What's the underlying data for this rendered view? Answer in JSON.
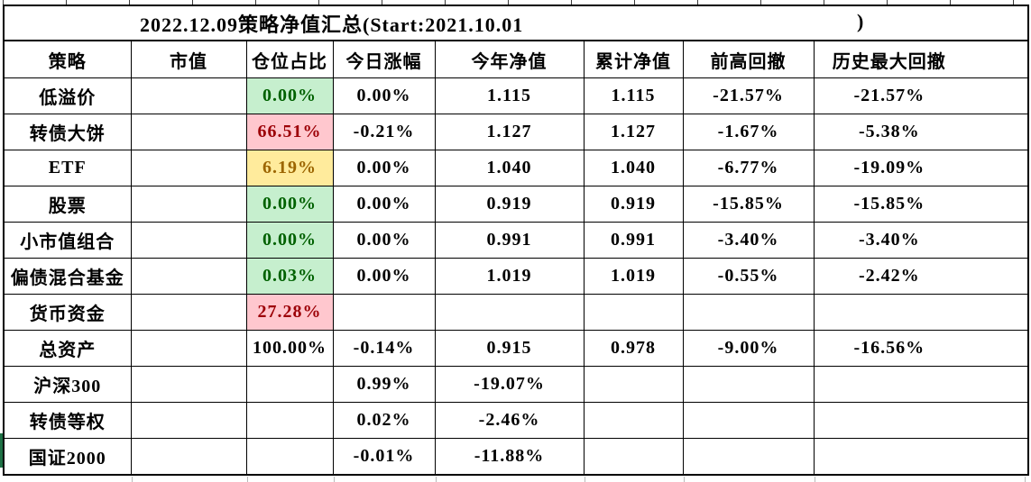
{
  "title": {
    "main": "2022.12.09策略净值汇总(Start:2021.10.01",
    "close_paren": ")"
  },
  "table": {
    "columns": [
      "策略",
      "市值",
      "仓位占比",
      "今日涨幅",
      "今年净值",
      "累计净值",
      "前高回撤",
      "历史最大回撤"
    ],
    "rows": [
      {
        "strategy": "低溢价",
        "market_value": "",
        "position": "0.00%",
        "position_style": "good",
        "today": "0.00%",
        "ytd_nav": "1.115",
        "cum_nav": "1.115",
        "drawdown_from_high": "-21.57%",
        "max_drawdown": "-21.57%"
      },
      {
        "strategy": "转债大饼",
        "market_value": "",
        "position": "66.51%",
        "position_style": "bad",
        "today": "-0.21%",
        "ytd_nav": "1.127",
        "cum_nav": "1.127",
        "drawdown_from_high": "-1.67%",
        "max_drawdown": "-5.38%"
      },
      {
        "strategy": "ETF",
        "market_value": "",
        "position": "6.19%",
        "position_style": "neutral",
        "today": "0.00%",
        "ytd_nav": "1.040",
        "cum_nav": "1.040",
        "drawdown_from_high": "-6.77%",
        "max_drawdown": "-19.09%"
      },
      {
        "strategy": "股票",
        "market_value": "",
        "position": "0.00%",
        "position_style": "good",
        "today": "0.00%",
        "ytd_nav": "0.919",
        "cum_nav": "0.919",
        "drawdown_from_high": "-15.85%",
        "max_drawdown": "-15.85%"
      },
      {
        "strategy": "小市值组合",
        "market_value": "",
        "position": "0.00%",
        "position_style": "good",
        "today": "0.00%",
        "ytd_nav": "0.991",
        "cum_nav": "0.991",
        "drawdown_from_high": "-3.40%",
        "max_drawdown": "-3.40%"
      },
      {
        "strategy": "偏债混合基金",
        "market_value": "",
        "position": "0.03%",
        "position_style": "good",
        "today": "0.00%",
        "ytd_nav": "1.019",
        "cum_nav": "1.019",
        "drawdown_from_high": "-0.55%",
        "max_drawdown": "-2.42%"
      },
      {
        "strategy": "货币资金",
        "market_value": "",
        "position": "27.28%",
        "position_style": "bad",
        "today": "",
        "ytd_nav": "",
        "cum_nav": "",
        "drawdown_from_high": "",
        "max_drawdown": ""
      },
      {
        "strategy": "总资产",
        "market_value": "",
        "position": "100.00%",
        "position_style": "plain",
        "today": "-0.14%",
        "ytd_nav": "0.915",
        "cum_nav": "0.978",
        "drawdown_from_high": "-9.00%",
        "max_drawdown": "-16.56%"
      },
      {
        "strategy": "沪深300",
        "market_value": "",
        "position": "",
        "position_style": "plain",
        "today": "0.99%",
        "ytd_nav": "-19.07%",
        "cum_nav": "",
        "drawdown_from_high": "",
        "max_drawdown": ""
      },
      {
        "strategy": "转债等权",
        "market_value": "",
        "position": "",
        "position_style": "plain",
        "today": "0.02%",
        "ytd_nav": "-2.46%",
        "cum_nav": "",
        "drawdown_from_high": "",
        "max_drawdown": ""
      },
      {
        "strategy": "国证2000",
        "market_value": "",
        "position": "",
        "position_style": "plain",
        "today": "-0.01%",
        "ytd_nav": "-11.88%",
        "cum_nav": "",
        "drawdown_from_high": "",
        "max_drawdown": ""
      }
    ]
  },
  "colors": {
    "good_bg": "#C6EFCE",
    "good_text": "#006100",
    "bad_bg": "#FFC7CE",
    "bad_text": "#9C0006",
    "neutral_bg": "#FFEB9C",
    "neutral_text": "#9C6500",
    "grid": "#000000",
    "left_edge_fill": "#1E7145"
  }
}
